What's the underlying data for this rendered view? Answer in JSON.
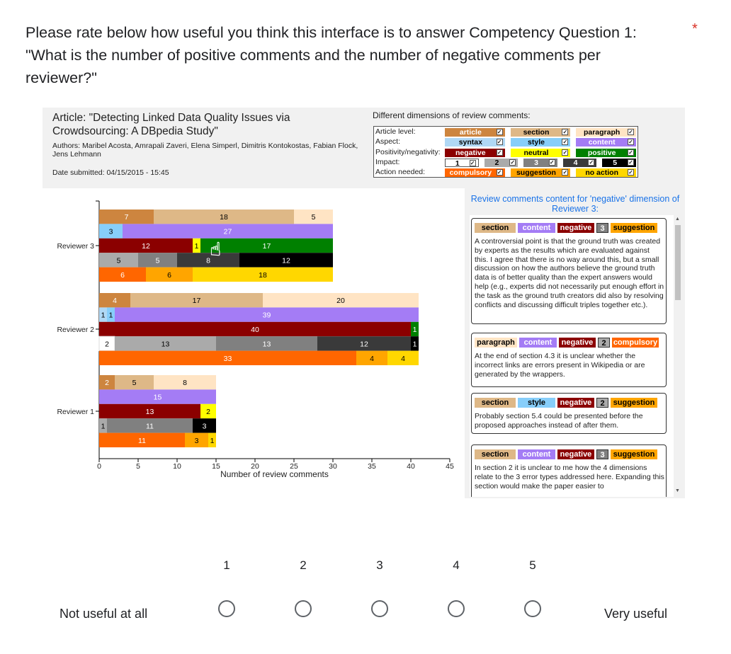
{
  "form": {
    "question": "Please rate below how useful you think this interface is to answer Competency Question 1: \"What is the number of positive comments and the number of negative comments per reviewer?\"",
    "required_mark": "*",
    "scale": {
      "min_label": "Not useful at all",
      "max_label": "Very useful",
      "options": [
        "1",
        "2",
        "3",
        "4",
        "5"
      ]
    }
  },
  "figure": {
    "article_title": "Article: \"Detecting Linked Data Quality Issues via Crowdsourcing: A DBpedia Study\"",
    "authors": "Authors: Maribel Acosta, Amrapali Zaveri, Elena Simperl, Dimitris Kontokostas, Fabian Flock, Jens Lehmann",
    "date": "Date submitted: 04/15/2015 - 15:45",
    "dimensions_title": "Different dimensions of review comments:",
    "dimension_rows": [
      {
        "label": "Article level:",
        "chips": [
          {
            "text": "article",
            "bg": "#cd853f",
            "fg": "#fff"
          },
          {
            "text": "section",
            "bg": "#deb887",
            "fg": "#000"
          },
          {
            "text": "paragraph",
            "bg": "#ffe4c4",
            "fg": "#000"
          }
        ]
      },
      {
        "label": "Aspect:",
        "chips": [
          {
            "text": "syntax",
            "bg": "#b0d8f5",
            "fg": "#000"
          },
          {
            "text": "style",
            "bg": "#87cefa",
            "fg": "#000"
          },
          {
            "text": "content",
            "bg": "#a47cf5",
            "fg": "#fff"
          }
        ]
      },
      {
        "label": "Positivity/negativity:",
        "chips": [
          {
            "text": "negative",
            "bg": "#8b0000",
            "fg": "#fff"
          },
          {
            "text": "neutral",
            "bg": "#ffff00",
            "fg": "#000"
          },
          {
            "text": "positive",
            "bg": "#008000",
            "fg": "#fff"
          }
        ]
      },
      {
        "label": "Impact:",
        "chips": [
          {
            "text": "1",
            "bg": "#fff",
            "fg": "#000"
          },
          {
            "text": "2",
            "bg": "#aaaaaa",
            "fg": "#000"
          },
          {
            "text": "3",
            "bg": "#808080",
            "fg": "#fff"
          },
          {
            "text": "4",
            "bg": "#3a3a3a",
            "fg": "#fff"
          },
          {
            "text": "5",
            "bg": "#000",
            "fg": "#fff"
          }
        ]
      },
      {
        "label": "Action needed:",
        "chips": [
          {
            "text": "compulsory",
            "bg": "#ff6600",
            "fg": "#fff"
          },
          {
            "text": "suggestion",
            "bg": "#ffa500",
            "fg": "#000"
          },
          {
            "text": "no action",
            "bg": "#ffd700",
            "fg": "#000"
          }
        ]
      }
    ],
    "review_panel_title": "Review comments content for 'negative' dimension of Reviewer 3:",
    "comments": [
      {
        "tags": [
          {
            "t": "section",
            "bg": "#deb887",
            "fg": "#000"
          },
          {
            "t": "content",
            "bg": "#a47cf5",
            "fg": "#fff"
          },
          {
            "t": "negative",
            "bg": "#8b0000",
            "fg": "#fff"
          },
          {
            "t": "3",
            "bg": "#808080",
            "fg": "#fff"
          },
          {
            "t": "suggestion",
            "bg": "#ffa500",
            "fg": "#000"
          }
        ],
        "text": "A controversial point is that the ground truth was created by experts as the results which are evaluated against this. I agree that there is no way around this, but a small discussion on how the authors believe the ground truth data is of better quality than the expert answers would help (e.g., experts did not necessarily put enough effort in the task as the ground truth creators did also by resolving conflicts and discussing difficult triples together etc.)."
      },
      {
        "tags": [
          {
            "t": "paragraph",
            "bg": "#ffe4c4",
            "fg": "#000"
          },
          {
            "t": "content",
            "bg": "#a47cf5",
            "fg": "#fff"
          },
          {
            "t": "negative",
            "bg": "#8b0000",
            "fg": "#fff"
          },
          {
            "t": "2",
            "bg": "#aaaaaa",
            "fg": "#000"
          },
          {
            "t": "compulsory",
            "bg": "#ff6600",
            "fg": "#fff"
          }
        ],
        "text": "At the end of section 4.3 it is unclear whether the incorrect links are errors present in Wikipedia or are generated by the wrappers."
      },
      {
        "tags": [
          {
            "t": "section",
            "bg": "#deb887",
            "fg": "#000"
          },
          {
            "t": "style",
            "bg": "#87cefa",
            "fg": "#000"
          },
          {
            "t": "negative",
            "bg": "#8b0000",
            "fg": "#fff"
          },
          {
            "t": "2",
            "bg": "#aaaaaa",
            "fg": "#000"
          },
          {
            "t": "suggestion",
            "bg": "#ffa500",
            "fg": "#000"
          }
        ],
        "text": "Probably section 5.4 could be presented before the proposed approaches instead of after them."
      },
      {
        "tags": [
          {
            "t": "section",
            "bg": "#deb887",
            "fg": "#000"
          },
          {
            "t": "content",
            "bg": "#a47cf5",
            "fg": "#fff"
          },
          {
            "t": "negative",
            "bg": "#8b0000",
            "fg": "#fff"
          },
          {
            "t": "3",
            "bg": "#808080",
            "fg": "#fff"
          },
          {
            "t": "suggestion",
            "bg": "#ffa500",
            "fg": "#000"
          }
        ],
        "text": "In section 2 it is unclear to me how the 4 dimensions relate to the 3 error types addressed here. Expanding this section would make the paper easier to"
      }
    ]
  },
  "chart_data": {
    "type": "bar",
    "orientation": "horizontal-stacked",
    "xlabel": "Number of review comments",
    "xlim": [
      0,
      45
    ],
    "xticks": [
      0,
      5,
      10,
      15,
      20,
      25,
      30,
      35,
      40,
      45
    ],
    "categories": [
      "Reviewer 3",
      "Reviewer 2",
      "Reviewer 1"
    ],
    "groups": [
      {
        "reviewer": "Reviewer 3",
        "rows": [
          {
            "dimension": "article level",
            "segments": [
              {
                "v": 7,
                "c": "#cd853f",
                "l": "7",
                "lc": "#fff"
              },
              {
                "v": 18,
                "c": "#deb887",
                "l": "18",
                "lc": "#000"
              },
              {
                "v": 5,
                "c": "#ffe4c4",
                "l": "5",
                "lc": "#000"
              }
            ]
          },
          {
            "dimension": "aspect",
            "segments": [
              {
                "v": 3,
                "c": "#87cefa",
                "l": "3",
                "lc": "#000"
              },
              {
                "v": 27,
                "c": "#a47cf5",
                "l": "27",
                "lc": "#fff"
              }
            ]
          },
          {
            "dimension": "positivity",
            "segments": [
              {
                "v": 12,
                "c": "#8b0000",
                "l": "12",
                "lc": "#fff"
              },
              {
                "v": 1,
                "c": "#ffff00",
                "l": "1",
                "lc": "#000"
              },
              {
                "v": 17,
                "c": "#008000",
                "l": "17",
                "lc": "#fff"
              }
            ]
          },
          {
            "dimension": "impact",
            "segments": [
              {
                "v": 5,
                "c": "#aaaaaa",
                "l": "5",
                "lc": "#000"
              },
              {
                "v": 5,
                "c": "#808080",
                "l": "5",
                "lc": "#fff"
              },
              {
                "v": 8,
                "c": "#3a3a3a",
                "l": "8",
                "lc": "#fff"
              },
              {
                "v": 12,
                "c": "#000000",
                "l": "12",
                "lc": "#fff"
              }
            ]
          },
          {
            "dimension": "action",
            "segments": [
              {
                "v": 6,
                "c": "#ff6600",
                "l": "6",
                "lc": "#fff"
              },
              {
                "v": 6,
                "c": "#ffa500",
                "l": "6",
                "lc": "#000"
              },
              {
                "v": 18,
                "c": "#ffd700",
                "l": "18",
                "lc": "#000"
              }
            ]
          }
        ]
      },
      {
        "reviewer": "Reviewer 2",
        "rows": [
          {
            "dimension": "article level",
            "segments": [
              {
                "v": 4,
                "c": "#cd853f",
                "l": "4",
                "lc": "#fff"
              },
              {
                "v": 17,
                "c": "#deb887",
                "l": "17",
                "lc": "#000"
              },
              {
                "v": 20,
                "c": "#ffe4c4",
                "l": "20",
                "lc": "#000"
              }
            ]
          },
          {
            "dimension": "aspect",
            "segments": [
              {
                "v": 1,
                "c": "#b0d8f5",
                "l": "1",
                "lc": "#000"
              },
              {
                "v": 1,
                "c": "#87cefa",
                "l": "1",
                "lc": "#000"
              },
              {
                "v": 39,
                "c": "#a47cf5",
                "l": "39",
                "lc": "#fff"
              }
            ]
          },
          {
            "dimension": "positivity",
            "segments": [
              {
                "v": 40,
                "c": "#8b0000",
                "l": "40",
                "lc": "#fff"
              },
              {
                "v": 1,
                "c": "#008000",
                "l": "1",
                "lc": "#fff"
              }
            ]
          },
          {
            "dimension": "impact",
            "segments": [
              {
                "v": 2,
                "c": "#ffffff",
                "l": "2",
                "lc": "#000"
              },
              {
                "v": 13,
                "c": "#aaaaaa",
                "l": "13",
                "lc": "#000"
              },
              {
                "v": 13,
                "c": "#808080",
                "l": "13",
                "lc": "#fff"
              },
              {
                "v": 12,
                "c": "#3a3a3a",
                "l": "12",
                "lc": "#fff"
              },
              {
                "v": 1,
                "c": "#000000",
                "l": "1",
                "lc": "#fff"
              }
            ]
          },
          {
            "dimension": "action",
            "segments": [
              {
                "v": 33,
                "c": "#ff6600",
                "l": "33",
                "lc": "#fff"
              },
              {
                "v": 4,
                "c": "#ffa500",
                "l": "4",
                "lc": "#000"
              },
              {
                "v": 4,
                "c": "#ffd700",
                "l": "4",
                "lc": "#000"
              }
            ]
          }
        ]
      },
      {
        "reviewer": "Reviewer 1",
        "rows": [
          {
            "dimension": "article level",
            "segments": [
              {
                "v": 2,
                "c": "#cd853f",
                "l": "2",
                "lc": "#fff"
              },
              {
                "v": 5,
                "c": "#deb887",
                "l": "5",
                "lc": "#000"
              },
              {
                "v": 8,
                "c": "#ffe4c4",
                "l": "8",
                "lc": "#000"
              }
            ]
          },
          {
            "dimension": "aspect",
            "segments": [
              {
                "v": 15,
                "c": "#a47cf5",
                "l": "15",
                "lc": "#fff"
              }
            ]
          },
          {
            "dimension": "positivity",
            "segments": [
              {
                "v": 13,
                "c": "#8b0000",
                "l": "13",
                "lc": "#fff"
              },
              {
                "v": 2,
                "c": "#ffff00",
                "l": "2",
                "lc": "#000"
              }
            ]
          },
          {
            "dimension": "impact",
            "segments": [
              {
                "v": 1,
                "c": "#aaaaaa",
                "l": "1",
                "lc": "#000"
              },
              {
                "v": 11,
                "c": "#808080",
                "l": "11",
                "lc": "#fff"
              },
              {
                "v": 3,
                "c": "#000000",
                "l": "3",
                "lc": "#fff"
              }
            ]
          },
          {
            "dimension": "action",
            "segments": [
              {
                "v": 11,
                "c": "#ff6600",
                "l": "11",
                "lc": "#fff"
              },
              {
                "v": 3,
                "c": "#ffa500",
                "l": "3",
                "lc": "#000"
              },
              {
                "v": 1,
                "c": "#ffd700",
                "l": "1",
                "lc": "#000"
              }
            ]
          }
        ]
      }
    ]
  }
}
